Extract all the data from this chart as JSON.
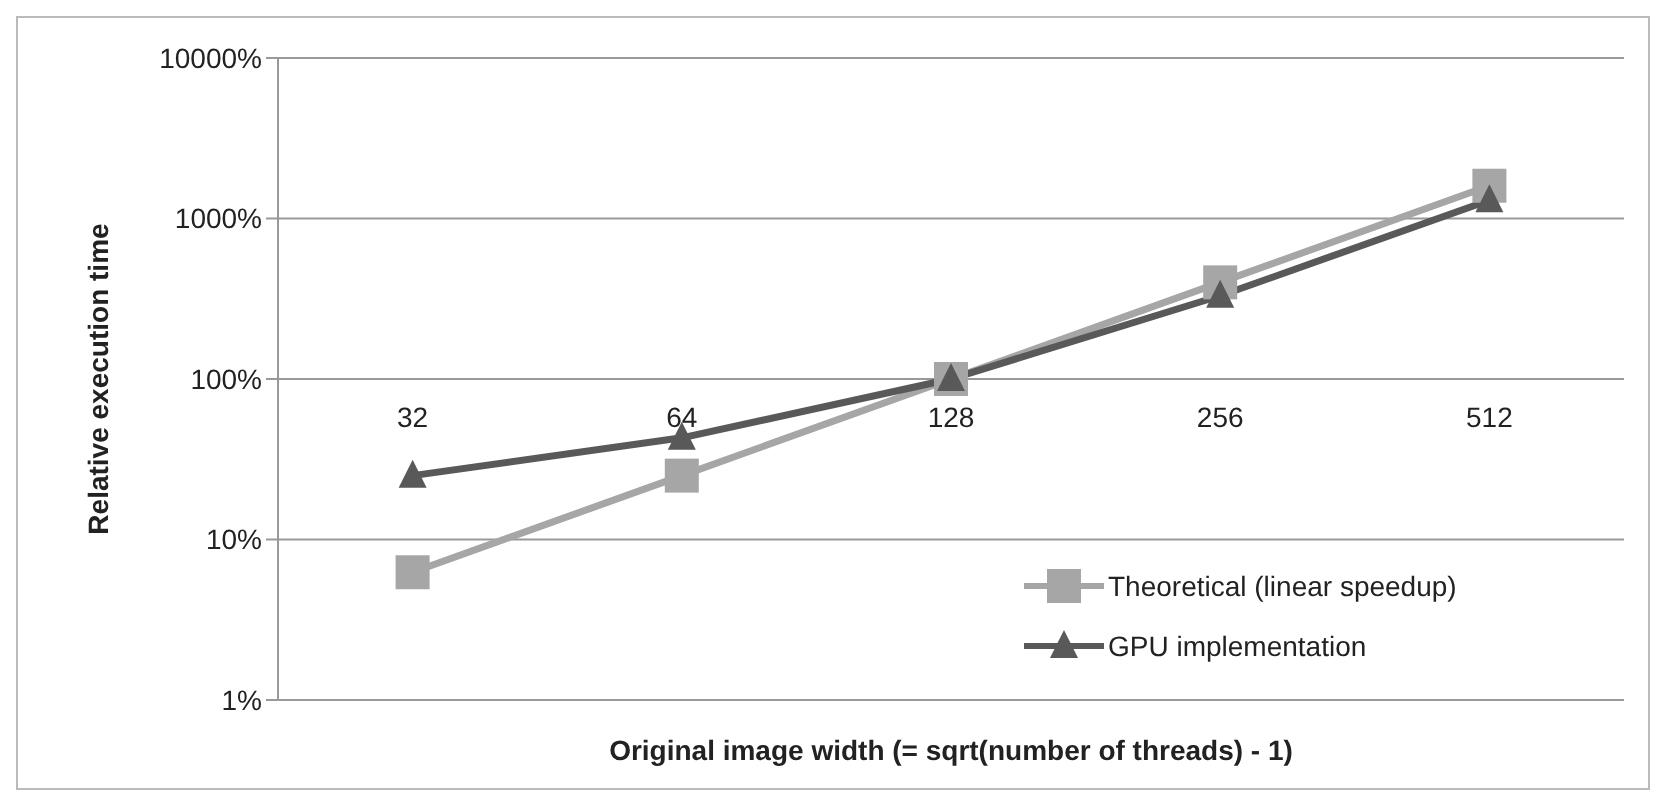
{
  "chart_data": {
    "type": "line",
    "xlabel": "Original image width (= sqrt(number of threads) - 1)",
    "ylabel": "Relative execution time",
    "categories": [
      "32",
      "64",
      "128",
      "256",
      "512"
    ],
    "series": [
      {
        "name": "Theoretical (linear speedup)",
        "color": "#a6a6a6",
        "marker": "square",
        "values": [
          6.25,
          25,
          100,
          400,
          1600
        ]
      },
      {
        "name": "GPU implementation",
        "color": "#595959",
        "marker": "triangle",
        "values": [
          25,
          43,
          100,
          330,
          1300
        ]
      }
    ],
    "log": "y",
    "ylim": [
      1,
      10000
    ],
    "yticks": [
      {
        "value": 1,
        "label": "1%"
      },
      {
        "value": 10,
        "label": "10%"
      },
      {
        "value": 100,
        "label": "100%"
      },
      {
        "value": 1000,
        "label": "1000%"
      },
      {
        "value": 10000,
        "label": "10000%"
      }
    ],
    "grid": "y",
    "legend": "bottom right"
  }
}
